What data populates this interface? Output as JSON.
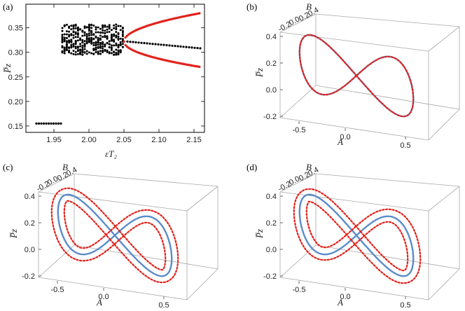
{
  "chart_data": [
    {
      "panel": "(a)",
      "type": "scatter",
      "xlabel": "εT₂",
      "ylabel": "P̅z",
      "xlim": [
        1.91,
        2.165
      ],
      "ylim": [
        0.137,
        0.398
      ],
      "xticks": [
        "1.95",
        "2.00",
        "2.05",
        "2.10",
        "2.15"
      ],
      "yticks": [
        "0.15",
        "0.20",
        "0.25",
        "0.30",
        "0.35"
      ],
      "series": [
        {
          "color": "#000000",
          "segments": [
            {
              "kind": "fixed-point",
              "x_range": [
                1.925,
                1.96
              ],
              "y": 0.155
            },
            {
              "kind": "chaotic-band",
              "x_range": [
                1.962,
                2.05
              ],
              "y_range": [
                0.295,
                0.357
              ]
            },
            {
              "kind": "unstable-branch",
              "x_range": [
                2.055,
                2.16
              ],
              "y_start": 0.322,
              "y_end": 0.308
            }
          ]
        },
        {
          "color": "#e0221c",
          "segments": [
            {
              "kind": "upper-branch",
              "x_range": [
                2.05,
                2.16
              ],
              "y_start": 0.322,
              "y_end": 0.38
            },
            {
              "kind": "lower-branch",
              "x_range": [
                2.05,
                2.16
              ],
              "y_start": 0.322,
              "y_end": 0.27
            }
          ]
        }
      ]
    },
    {
      "panel": "(b)",
      "type": "3d-line",
      "xlabel": "A",
      "ylabel": "B",
      "zlabel": "P̅z",
      "xticks": [
        "-0.5",
        "0.0",
        "0.5"
      ],
      "yticks": [
        "-0.2",
        "0.0",
        "0.2",
        "0.4"
      ],
      "zticks": [
        "0.4",
        "0.2",
        "0.0",
        "-0.2"
      ],
      "series": [
        {
          "color": "#5b8cc9",
          "style": "solid",
          "offset": 0
        },
        {
          "color": "#e0221c",
          "style": "dotted",
          "offset": 0
        }
      ]
    },
    {
      "panel": "(c)",
      "type": "3d-line",
      "xlabel": "A",
      "ylabel": "B",
      "zlabel": "P̅z",
      "xticks": [
        "-0.5",
        "0.0",
        "0.5"
      ],
      "yticks": [
        "-0.2",
        "0.0",
        "0.2",
        "0.4"
      ],
      "zticks": [
        "0.4",
        "0.2",
        "0.0",
        "-0.2"
      ],
      "series": [
        {
          "color": "#5b8cc9",
          "style": "solid",
          "offset": 0
        },
        {
          "color": "#e0221c",
          "style": "dotted",
          "offset": -9
        },
        {
          "color": "#e0221c",
          "style": "dotted",
          "offset": 9
        }
      ]
    },
    {
      "panel": "(d)",
      "type": "3d-line",
      "xlabel": "A",
      "ylabel": "B",
      "zlabel": "P̅z",
      "xticks": [
        "-0.5",
        "0.0",
        "0.5"
      ],
      "yticks": [
        "-0.2",
        "0.0",
        "0.2",
        "0.4"
      ],
      "zticks": [
        "0.4",
        "0.2",
        "0.0",
        "-0.2"
      ],
      "series": [
        {
          "color": "#5b8cc9",
          "style": "solid",
          "offset": 0
        },
        {
          "color": "#e0221c",
          "style": "dotted",
          "offset": -8
        },
        {
          "color": "#e0221c",
          "style": "dotted",
          "offset": 10
        }
      ]
    }
  ]
}
